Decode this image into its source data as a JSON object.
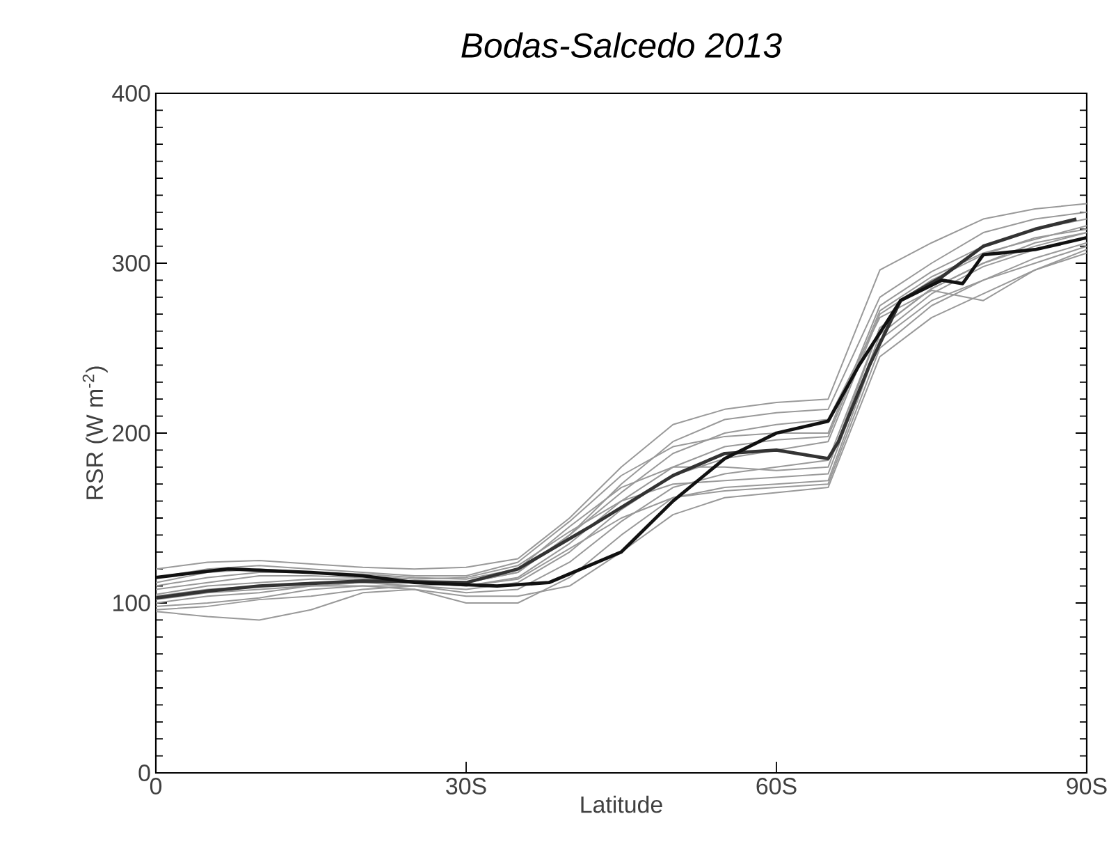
{
  "chart_data": {
    "type": "line",
    "title": "*Bodas-Salcedo 2013*",
    "xlabel": "Latitude",
    "ylabel": "RSR (W m$^{-2}$)",
    "x": [
      0,
      5,
      10,
      15,
      20,
      25,
      30,
      35,
      40,
      45,
      50,
      55,
      60,
      65,
      70,
      75,
      80,
      85,
      90
    ],
    "xlim": [
      0,
      90
    ],
    "ylim": [
      0,
      400
    ],
    "xticks": [
      {
        "value": 0,
        "label": "0"
      },
      {
        "value": 30,
        "label": "30S"
      },
      {
        "value": 60,
        "label": "60S"
      },
      {
        "value": 90,
        "label": "90S"
      }
    ],
    "yticks": [
      0,
      100,
      200,
      300,
      400
    ],
    "series": [
      {
        "color": "#999999",
        "values": [
          120,
          124,
          125,
          123,
          121,
          120,
          121,
          126,
          150,
          180,
          205,
          214,
          218,
          220,
          296,
          312,
          326,
          332,
          335
        ]
      },
      {
        "color": "#999999",
        "values": [
          95,
          92,
          90,
          96,
          106,
          108,
          104,
          104,
          110,
          130,
          152,
          162,
          165,
          168,
          245,
          268,
          282,
          296,
          308
        ]
      },
      {
        "color": "#999999",
        "values": [
          105,
          110,
          112,
          114,
          114,
          113,
          112,
          118,
          140,
          170,
          195,
          208,
          212,
          214,
          280,
          300,
          318,
          326,
          330
        ]
      },
      {
        "color": "#999999",
        "values": [
          98,
          100,
          103,
          108,
          110,
          110,
          108,
          112,
          130,
          155,
          175,
          185,
          190,
          195,
          270,
          290,
          305,
          315,
          320
        ]
      },
      {
        "color": "#999999",
        "values": [
          110,
          115,
          118,
          118,
          117,
          115,
          114,
          120,
          145,
          168,
          180,
          180,
          178,
          180,
          262,
          285,
          300,
          312,
          318
        ]
      },
      {
        "color": "#999999",
        "values": [
          100,
          104,
          106,
          110,
          110,
          108,
          100,
          100,
          115,
          140,
          162,
          168,
          170,
          172,
          255,
          278,
          290,
          300,
          310
        ]
      },
      {
        "color": "#999999",
        "values": [
          112,
          118,
          120,
          118,
          116,
          114,
          115,
          122,
          142,
          160,
          170,
          172,
          174,
          176,
          258,
          282,
          298,
          308,
          315
        ]
      },
      {
        "color": "#999999",
        "values": [
          102,
          106,
          108,
          110,
          112,
          112,
          110,
          115,
          135,
          160,
          180,
          192,
          196,
          198,
          272,
          292,
          306,
          314,
          322
        ]
      },
      {
        "color": "#999999",
        "values": [
          108,
          112,
          116,
          116,
          115,
          112,
          110,
          114,
          132,
          150,
          162,
          166,
          168,
          170,
          250,
          275,
          290,
          303,
          312
        ]
      },
      {
        "color": "#999999",
        "values": [
          96,
          98,
          102,
          104,
          108,
          110,
          112,
          118,
          140,
          165,
          188,
          200,
          205,
          208,
          268,
          284,
          278,
          296,
          306
        ]
      },
      {
        "color": "#999999",
        "values": [
          115,
          120,
          122,
          120,
          118,
          116,
          116,
          124,
          148,
          175,
          192,
          198,
          200,
          200,
          275,
          295,
          310,
          320,
          326
        ]
      },
      {
        "color": "#999999",
        "values": [
          104,
          108,
          110,
          112,
          112,
          110,
          106,
          108,
          124,
          148,
          168,
          176,
          180,
          184,
          262,
          285,
          300,
          310,
          318
        ]
      },
      {
        "color": "#333333",
        "x": [
          0,
          5,
          10,
          20,
          30,
          35,
          42,
          50,
          55,
          60,
          65,
          66,
          69,
          72,
          76,
          80,
          85,
          89
        ],
        "values": [
          103,
          107,
          110,
          113,
          112,
          120,
          145,
          175,
          188,
          190,
          185,
          195,
          240,
          278,
          292,
          310,
          320,
          326
        ]
      },
      {
        "color": "#111111",
        "x": [
          0,
          4,
          7,
          15,
          20,
          25,
          33,
          38,
          45,
          50,
          55,
          60,
          65,
          68,
          72,
          76,
          78,
          80,
          85,
          90
        ],
        "values": [
          115,
          118,
          120,
          118,
          116,
          112,
          110,
          112,
          130,
          160,
          185,
          200,
          207,
          240,
          278,
          290,
          288,
          305,
          308,
          315
        ]
      }
    ]
  }
}
